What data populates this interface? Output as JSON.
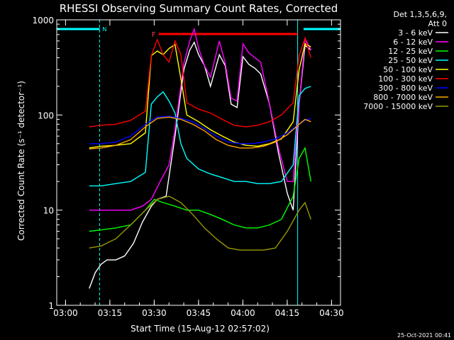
{
  "chart_data": {
    "type": "line",
    "title": "RHESSI Observing Summary Count Rates, Corrected",
    "xlabel": "Start Time (15-Aug-12 02:57:02)",
    "ylabel": "Corrected Count Rate (s⁻¹ detector⁻¹)",
    "yscale": "log",
    "xlim": [
      0,
      96
    ],
    "ylim": [
      1,
      1000
    ],
    "x_unit": "minutes after 02:57:02",
    "xtick_labels": [
      "03:00",
      "03:15",
      "03:30",
      "03:45",
      "04:00",
      "04:15",
      "04:30"
    ],
    "xtick_values": [
      2.97,
      17.97,
      32.97,
      47.97,
      62.97,
      77.97,
      92.97
    ],
    "ytick_labels": [
      "1",
      "10",
      "100",
      "1000"
    ],
    "ytick_values": [
      1,
      10,
      100,
      1000
    ],
    "legend_header": [
      "Det 1,3,5,6,9,",
      "Att 0"
    ],
    "legend_placement": "right",
    "footer_date": "25-Oct-2021 00:41",
    "night_marker": "N",
    "flare_marker": "F",
    "night_intervals": [
      [
        0,
        14.5
      ],
      [
        83.5,
        96
      ]
    ],
    "flare_interval": [
      34.5,
      81.5
    ],
    "saa_vlines": [
      14.5,
      81.5,
      96
    ],
    "series": [
      {
        "name": "3 - 6 keV",
        "color": "#ffffff",
        "x": [
          11,
          13,
          15,
          17,
          20,
          23,
          26,
          29,
          32,
          34,
          37,
          40,
          43,
          45,
          46.5,
          48,
          50,
          52,
          55,
          57,
          59,
          61,
          63,
          65,
          67,
          69,
          72,
          75,
          78,
          80,
          82,
          84,
          86
        ],
        "y": [
          1.5,
          2.2,
          2.7,
          3.0,
          3.0,
          3.3,
          4.5,
          7.5,
          11,
          13,
          14,
          60,
          300,
          480,
          580,
          430,
          330,
          200,
          430,
          330,
          130,
          120,
          410,
          340,
          310,
          270,
          130,
          40,
          15,
          10,
          130,
          540,
          480
        ]
      },
      {
        "name": "6 - 12 keV",
        "color": "#ff00ff",
        "x": [
          11,
          15,
          20,
          25,
          29,
          32,
          35,
          38,
          40,
          43,
          45,
          46.5,
          48,
          50,
          52,
          55,
          57,
          59,
          61,
          63,
          65,
          67,
          69,
          72,
          75,
          78,
          80,
          82,
          84,
          86
        ],
        "y": [
          10,
          10,
          10,
          10,
          11,
          13,
          20,
          30,
          70,
          350,
          600,
          800,
          500,
          330,
          250,
          600,
          350,
          150,
          140,
          560,
          450,
          400,
          360,
          130,
          45,
          20,
          20,
          130,
          640,
          480
        ]
      },
      {
        "name": "12 - 25 keV",
        "color": "#00ff00",
        "x": [
          11,
          15,
          20,
          25,
          30,
          33,
          36,
          40,
          44,
          48,
          52,
          56,
          60,
          64,
          68,
          72,
          76,
          80,
          82,
          84,
          86
        ],
        "y": [
          6,
          6.2,
          6.5,
          7,
          10,
          13,
          12,
          11,
          10,
          10,
          9,
          8,
          7,
          6.5,
          6.5,
          7,
          8,
          14,
          35,
          45,
          20
        ]
      },
      {
        "name": "25 - 50 keV",
        "color": "#00ffff",
        "x": [
          11,
          15,
          20,
          25,
          30,
          32,
          34,
          36,
          38,
          40,
          42,
          44,
          48,
          52,
          56,
          60,
          64,
          68,
          72,
          76,
          80,
          82,
          84,
          86
        ],
        "y": [
          18,
          18,
          19,
          20,
          25,
          130,
          155,
          175,
          140,
          105,
          50,
          35,
          27,
          24,
          22,
          20,
          20,
          19,
          19,
          20,
          30,
          160,
          190,
          200
        ]
      },
      {
        "name": "50 - 100 keV",
        "color": "#ffff00",
        "x": [
          11,
          15,
          20,
          25,
          30,
          32,
          34,
          36,
          38,
          40,
          42,
          44,
          48,
          52,
          56,
          60,
          64,
          68,
          72,
          76,
          80,
          82,
          84,
          86
        ],
        "y": [
          45,
          47,
          48,
          50,
          65,
          420,
          470,
          430,
          500,
          550,
          240,
          100,
          85,
          70,
          60,
          52,
          48,
          47,
          50,
          56,
          85,
          300,
          560,
          520
        ]
      },
      {
        "name": "100 - 300 keV",
        "color": "#ff0000",
        "x": [
          11,
          15,
          20,
          25,
          30,
          32,
          34,
          36,
          38,
          40,
          42,
          44,
          48,
          52,
          56,
          60,
          64,
          68,
          72,
          76,
          80,
          82,
          84,
          86
        ],
        "y": [
          75,
          78,
          80,
          88,
          110,
          420,
          620,
          430,
          360,
          600,
          430,
          135,
          115,
          105,
          90,
          78,
          75,
          78,
          85,
          100,
          135,
          420,
          640,
          400
        ]
      },
      {
        "name": "300 - 800 keV",
        "color": "#0000ff",
        "x": [
          11,
          15,
          20,
          25,
          30,
          34,
          38,
          42,
          46,
          50,
          54,
          58,
          62,
          66,
          70,
          74,
          78,
          82,
          84,
          86
        ],
        "y": [
          50,
          50,
          52,
          60,
          80,
          95,
          97,
          92,
          85,
          72,
          60,
          52,
          50,
          50,
          52,
          56,
          65,
          80,
          88,
          92
        ]
      },
      {
        "name": "800 - 7000 keV",
        "color": "#ffa500",
        "x": [
          11,
          15,
          20,
          25,
          30,
          34,
          38,
          42,
          46,
          50,
          54,
          58,
          62,
          66,
          70,
          74,
          78,
          82,
          84,
          86
        ],
        "y": [
          44,
          45,
          48,
          55,
          75,
          92,
          95,
          90,
          80,
          68,
          55,
          48,
          45,
          45,
          47,
          52,
          62,
          80,
          90,
          85
        ]
      },
      {
        "name": "7000 - 15000 keV",
        "color": "#999900",
        "x": [
          11,
          15,
          20,
          25,
          30,
          34,
          38,
          42,
          46,
          50,
          54,
          58,
          62,
          66,
          70,
          74,
          78,
          82,
          84,
          86
        ],
        "y": [
          4,
          4.2,
          5,
          7,
          10,
          13,
          14,
          12,
          9,
          6.5,
          5,
          4,
          3.8,
          3.8,
          3.8,
          4,
          6,
          10,
          12,
          8
        ]
      }
    ]
  }
}
